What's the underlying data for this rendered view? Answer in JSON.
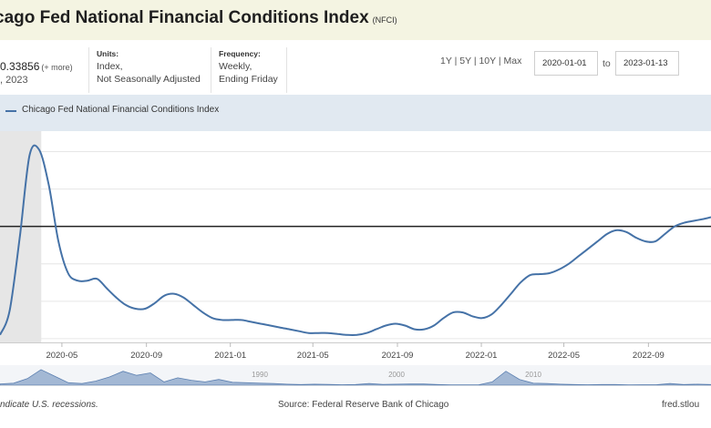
{
  "header": {
    "title": "cago Fed National Financial Conditions Index",
    "series_code": "(NFCI)"
  },
  "observation": {
    "value": "0.33856",
    "more": "(+ more)",
    "date": ", 2023"
  },
  "units": {
    "label": "Units:",
    "line1": "Index,",
    "line2": "Not Seasonally Adjusted"
  },
  "frequency": {
    "label": "Frequency:",
    "line1": "Weekly,",
    "line2": "Ending Friday"
  },
  "range_buttons": {
    "y1": "1Y",
    "y5": "5Y",
    "y10": "10Y",
    "max": "Max",
    "sep": "|"
  },
  "date_range": {
    "start": "2020-01-01",
    "to": "to",
    "end": "2023-01-13"
  },
  "legend": {
    "label": "Chicago Fed National Financial Conditions Index"
  },
  "footer": {
    "note": "ndicate U.S. recessions.",
    "source": "Source: Federal Reserve Bank of Chicago",
    "link": "fred.stlou"
  },
  "colors": {
    "line": "#4572a7",
    "recession": "#e6e6e6",
    "reference": "#222222",
    "navigator_fill": "#a3b8d4"
  },
  "chart_data": {
    "type": "line",
    "title": "",
    "xlabel": "",
    "ylabel": "",
    "x_range": [
      "2020-02-01",
      "2022-12-01"
    ],
    "y_range": [
      -0.62,
      0.5
    ],
    "reference_line_y": 0,
    "recession_shading": [
      "2020-02-01",
      "2020-04-01"
    ],
    "x_ticks": [
      "2020-05",
      "2020-09",
      "2021-01",
      "2021-05",
      "2021-09",
      "2022-01",
      "2022-05",
      "2022-09"
    ],
    "series": [
      {
        "x": [
          "2020-02-01",
          "2020-02-15",
          "2020-03-01",
          "2020-03-15",
          "2020-03-29",
          "2020-04-12",
          "2020-04-26",
          "2020-05-10",
          "2020-05-24",
          "2020-06-07",
          "2020-06-21",
          "2020-07-05",
          "2020-07-19",
          "2020-08-02",
          "2020-08-16",
          "2020-08-30",
          "2020-09-13",
          "2020-09-27",
          "2020-10-11",
          "2020-10-25",
          "2020-11-08",
          "2020-11-22",
          "2020-12-06",
          "2020-12-20",
          "2021-01-03",
          "2021-01-17",
          "2021-01-31",
          "2021-02-14",
          "2021-02-28",
          "2021-03-14",
          "2021-03-28",
          "2021-04-11",
          "2021-04-25",
          "2021-05-09",
          "2021-05-23",
          "2021-06-06",
          "2021-06-20",
          "2021-07-04",
          "2021-07-18",
          "2021-08-01",
          "2021-08-15",
          "2021-08-29",
          "2021-09-12",
          "2021-09-26",
          "2021-10-10",
          "2021-10-24",
          "2021-11-07",
          "2021-11-21",
          "2021-12-05",
          "2021-12-19",
          "2022-01-02",
          "2022-01-16",
          "2022-01-30",
          "2022-02-13",
          "2022-02-27",
          "2022-03-13",
          "2022-03-27",
          "2022-04-10",
          "2022-04-24",
          "2022-05-08",
          "2022-05-22",
          "2022-06-05",
          "2022-06-19",
          "2022-07-03",
          "2022-07-17",
          "2022-07-31",
          "2022-08-14",
          "2022-08-28",
          "2022-09-11",
          "2022-09-25",
          "2022-10-09",
          "2022-10-23",
          "2022-11-06",
          "2022-11-20",
          "2022-12-01"
        ],
        "values": [
          -0.58,
          -0.45,
          -0.05,
          0.38,
          0.41,
          0.22,
          -0.08,
          -0.25,
          -0.29,
          -0.29,
          -0.28,
          -0.33,
          -0.38,
          -0.42,
          -0.44,
          -0.44,
          -0.41,
          -0.37,
          -0.36,
          -0.38,
          -0.42,
          -0.46,
          -0.49,
          -0.5,
          -0.5,
          -0.5,
          -0.51,
          -0.52,
          -0.53,
          -0.54,
          -0.55,
          -0.56,
          -0.57,
          -0.57,
          -0.57,
          -0.575,
          -0.58,
          -0.58,
          -0.57,
          -0.55,
          -0.53,
          -0.52,
          -0.53,
          -0.55,
          -0.55,
          -0.53,
          -0.49,
          -0.46,
          -0.46,
          -0.48,
          -0.49,
          -0.47,
          -0.42,
          -0.36,
          -0.3,
          -0.26,
          -0.255,
          -0.25,
          -0.23,
          -0.2,
          -0.16,
          -0.12,
          -0.08,
          -0.04,
          -0.02,
          -0.03,
          -0.06,
          -0.08,
          -0.08,
          -0.04,
          0.0,
          0.02,
          0.03,
          0.04,
          0.05
        ]
      }
    ],
    "navigator": {
      "labels": [
        {
          "x": 1990,
          "text": "1990"
        },
        {
          "x": 2000,
          "text": "2000"
        },
        {
          "x": 2010,
          "text": "2010"
        }
      ],
      "x_range": [
        1971,
        2023
      ],
      "values": [
        [
          1971,
          0.08
        ],
        [
          1972,
          0.12
        ],
        [
          1973,
          0.4
        ],
        [
          1974,
          0.95
        ],
        [
          1975,
          0.55
        ],
        [
          1976,
          0.15
        ],
        [
          1977,
          0.1
        ],
        [
          1978,
          0.25
        ],
        [
          1979,
          0.5
        ],
        [
          1980,
          0.85
        ],
        [
          1981,
          0.6
        ],
        [
          1982,
          0.75
        ],
        [
          1983,
          0.2
        ],
        [
          1984,
          0.45
        ],
        [
          1985,
          0.3
        ],
        [
          1986,
          0.2
        ],
        [
          1987,
          0.35
        ],
        [
          1988,
          0.18
        ],
        [
          1989,
          0.15
        ],
        [
          1990,
          0.12
        ],
        [
          1991,
          0.1
        ],
        [
          1992,
          0.06
        ],
        [
          1993,
          0.04
        ],
        [
          1994,
          0.06
        ],
        [
          1995,
          0.05
        ],
        [
          1996,
          0.03
        ],
        [
          1997,
          0.04
        ],
        [
          1998,
          0.1
        ],
        [
          1999,
          0.05
        ],
        [
          2000,
          0.06
        ],
        [
          2001,
          0.08
        ],
        [
          2002,
          0.07
        ],
        [
          2003,
          0.04
        ],
        [
          2004,
          0.02
        ],
        [
          2005,
          0.02
        ],
        [
          2006,
          0.02
        ],
        [
          2007,
          0.2
        ],
        [
          2008,
          0.85
        ],
        [
          2009,
          0.35
        ],
        [
          2010,
          0.12
        ],
        [
          2011,
          0.1
        ],
        [
          2012,
          0.06
        ],
        [
          2013,
          0.04
        ],
        [
          2014,
          0.03
        ],
        [
          2015,
          0.04
        ],
        [
          2016,
          0.04
        ],
        [
          2017,
          0.02
        ],
        [
          2018,
          0.03
        ],
        [
          2019,
          0.03
        ],
        [
          2020,
          0.1
        ],
        [
          2021,
          0.04
        ],
        [
          2022,
          0.06
        ],
        [
          2023,
          0.04
        ]
      ]
    }
  }
}
